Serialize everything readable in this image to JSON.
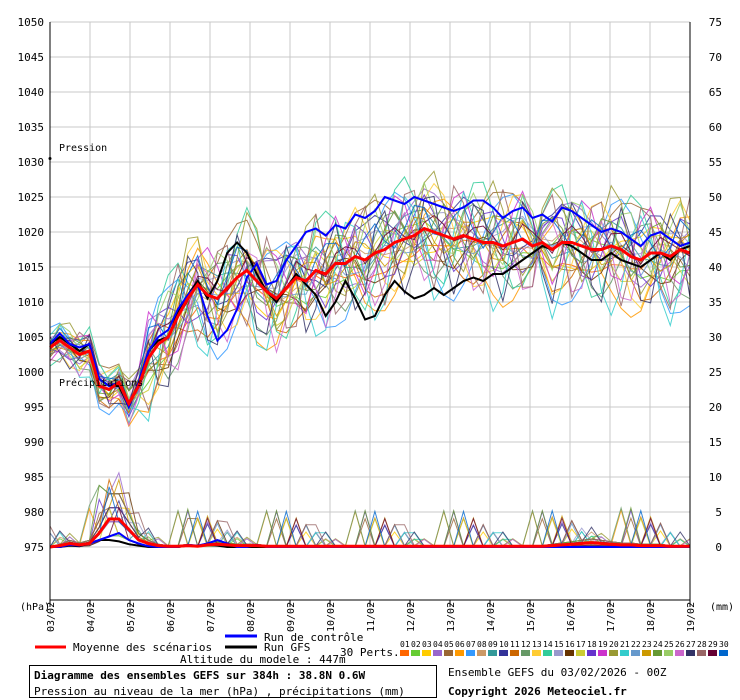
{
  "header": {
    "unit_left": "(hPa)",
    "unit_right": "(mm)"
  },
  "legend": {
    "mean_label": "Moyenne des scénarios",
    "control_label": "Run de contrôle",
    "gfs_label": "Run GFS",
    "perts_label": "30 Perts.",
    "altitude": "Altitude du modele : 447m",
    "perts_numbers": [
      "01",
      "02",
      "03",
      "04",
      "05",
      "06",
      "07",
      "08",
      "09",
      "10",
      "11",
      "12",
      "13",
      "14",
      "15",
      "16",
      "17",
      "18",
      "19",
      "20",
      "21",
      "22",
      "23",
      "24",
      "25",
      "26",
      "27",
      "28",
      "29",
      "30"
    ],
    "colors": {
      "mean": "#ff0000",
      "control": "#0000ff",
      "gfs": "#000000",
      "perts": [
        "#ff6600",
        "#66cc33",
        "#ffcc00",
        "#9966cc",
        "#996633",
        "#ff9900",
        "#3399ff",
        "#cc9966",
        "#339999",
        "#333399",
        "#cc6600",
        "#669966",
        "#ffcc33",
        "#33cc99",
        "#9999cc",
        "#663300",
        "#cccc33",
        "#6633cc",
        "#cc33cc",
        "#999933",
        "#33cccc",
        "#6699cc",
        "#cc9900",
        "#669933",
        "#99cc66",
        "#cc66cc",
        "#333366",
        "#996666",
        "#660033",
        "#0066cc"
      ]
    }
  },
  "footer": {
    "title": "Diagramme des ensembles GEFS sur 384h : 38.8N 0.6W",
    "subtitle": "Pression au niveau de la mer (hPa) , précipitations (mm)",
    "run_info": "Ensemble GEFS du 03/02/2026 - 00Z",
    "copyright": "Copyright 2026 Meteociel.fr"
  },
  "chart_data": {
    "type": "line",
    "annotations": [
      "Pression",
      "Précipitations"
    ],
    "x_ticks": [
      "03/02",
      "04/02",
      "05/02",
      "06/02",
      "07/02",
      "08/02",
      "09/02",
      "10/02",
      "11/02",
      "12/02",
      "13/02",
      "14/02",
      "15/02",
      "16/02",
      "17/02",
      "18/02",
      "19/02"
    ],
    "y_left": {
      "ylim": [
        975,
        1050
      ],
      "ticks": [
        975,
        980,
        985,
        990,
        995,
        1000,
        1005,
        1010,
        1015,
        1020,
        1025,
        1030,
        1035,
        1040,
        1045,
        1050
      ]
    },
    "y_right": {
      "ylim": [
        0,
        75
      ],
      "ticks": [
        0,
        5,
        10,
        15,
        20,
        25,
        30,
        35,
        40,
        45,
        50,
        55,
        60,
        65,
        70,
        75
      ]
    },
    "grid": true,
    "series": [
      {
        "name": "Moyenne des scénarios",
        "color": "#ff0000",
        "pressure": [
          1003.5,
          1004.5,
          1003.5,
          1002.5,
          1003,
          998,
          997.5,
          998.5,
          995.5,
          998,
          1002,
          1004,
          1005,
          1008,
          1010.5,
          1012.5,
          1011,
          1010.5,
          1012,
          1013.5,
          1014.5,
          1013,
          1011.5,
          1010.5,
          1012,
          1013.5,
          1013,
          1014.5,
          1014,
          1015.5,
          1015.5,
          1016.5,
          1016,
          1017,
          1017.5,
          1018.5,
          1019,
          1019.5,
          1020.5,
          1020,
          1019.5,
          1019,
          1019.5,
          1019,
          1018.5,
          1018.5,
          1018,
          1018.5,
          1019,
          1018,
          1018.5,
          1017.5,
          1018.5,
          1018.5,
          1018,
          1017.5,
          1017.5,
          1018,
          1017.5,
          1016.5,
          1016,
          1017,
          1017,
          1016.5,
          1017.5,
          1017
        ],
        "precip": [
          0,
          0.2,
          0.5,
          0.3,
          0.5,
          2,
          4,
          4,
          2.5,
          1,
          0.5,
          0.2,
          0.1,
          0.1,
          0.2,
          0.1,
          0.3,
          0.4,
          0.3,
          0.2,
          0.2,
          0.2,
          0.1,
          0.1,
          0.1,
          0.1,
          0.1,
          0.1,
          0.1,
          0.1,
          0.1,
          0.1,
          0.1,
          0.1,
          0.1,
          0.1,
          0.1,
          0.1,
          0.1,
          0.1,
          0.1,
          0.1,
          0.1,
          0.1,
          0.1,
          0.1,
          0.1,
          0.1,
          0.1,
          0.1,
          0.1,
          0.2,
          0.3,
          0.4,
          0.5,
          0.6,
          0.5,
          0.4,
          0.3,
          0.3,
          0.2,
          0.2,
          0.2,
          0.1,
          0.1,
          0.1
        ]
      },
      {
        "name": "Run de contrôle",
        "color": "#0000ff",
        "pressure": [
          1004,
          1005.5,
          1004,
          1003.5,
          1004,
          999,
          998,
          998.5,
          995,
          998.5,
          1003,
          1005,
          1006,
          1009,
          1011,
          1012.5,
          1008,
          1004.5,
          1006,
          1009,
          1013.5,
          1015.5,
          1012.5,
          1013,
          1016,
          1018,
          1020,
          1020.5,
          1019.5,
          1021,
          1020.5,
          1022.5,
          1022,
          1023,
          1025,
          1024.5,
          1024,
          1025,
          1024.5,
          1024,
          1023.5,
          1023,
          1023.5,
          1024.5,
          1024.5,
          1023.5,
          1022,
          1023,
          1023.5,
          1022,
          1022.5,
          1021.5,
          1023.5,
          1023,
          1022,
          1021,
          1020,
          1020.5,
          1020,
          1019,
          1018,
          1019.5,
          1020,
          1019,
          1018,
          1018.5
        ],
        "precip": [
          0,
          0,
          0.3,
          0.2,
          0.5,
          1,
          1.5,
          2,
          1,
          0.5,
          0.1,
          0,
          0,
          0,
          0.3,
          0.2,
          0.5,
          1,
          0.5,
          0,
          0,
          0.3,
          0,
          0,
          0,
          0,
          0,
          0,
          0,
          0,
          0,
          0,
          0,
          0,
          0,
          0,
          0,
          0,
          0,
          0,
          0,
          0,
          0,
          0,
          0,
          0,
          0,
          0,
          0,
          0,
          0,
          0,
          0,
          0,
          0,
          0,
          0,
          0,
          0,
          0,
          0,
          0,
          0,
          0,
          0,
          0
        ]
      },
      {
        "name": "Run GFS",
        "color": "#000000",
        "pressure": [
          1004,
          1005,
          1004,
          1003,
          1004,
          999,
          998,
          998,
          995,
          998.5,
          1003,
          1004.5,
          1005,
          1008.5,
          1011,
          1013,
          1010.5,
          1013,
          1017,
          1018.5,
          1017,
          1014,
          1011.5,
          1010,
          1012,
          1014,
          1012.5,
          1011,
          1008,
          1010,
          1013,
          1010.5,
          1007.5,
          1008,
          1011,
          1013,
          1011.5,
          1010.5,
          1011,
          1012,
          1011,
          1012,
          1013,
          1013.5,
          1013,
          1014,
          1014,
          1015,
          1016,
          1017,
          1018,
          1017.5,
          1018.5,
          1018,
          1017,
          1016,
          1016,
          1017,
          1016,
          1015.5,
          1015,
          1016,
          1017,
          1016,
          1017.5,
          1018
        ],
        "precip": [
          0,
          0,
          0.2,
          0.1,
          0.5,
          1,
          1,
          0.8,
          0.4,
          0.2,
          0,
          0,
          0,
          0,
          0.2,
          0.1,
          0.3,
          0.2,
          0,
          0,
          0,
          0,
          0,
          0,
          0,
          0,
          0,
          0,
          0,
          0,
          0,
          0,
          0,
          0,
          0,
          0,
          0,
          0,
          0,
          0,
          0,
          0,
          0,
          0,
          0,
          0,
          0,
          0,
          0,
          0,
          0,
          0,
          0,
          0,
          0,
          0,
          0,
          0,
          0,
          0,
          0,
          0,
          0,
          0,
          0,
          0
        ]
      }
    ]
  }
}
